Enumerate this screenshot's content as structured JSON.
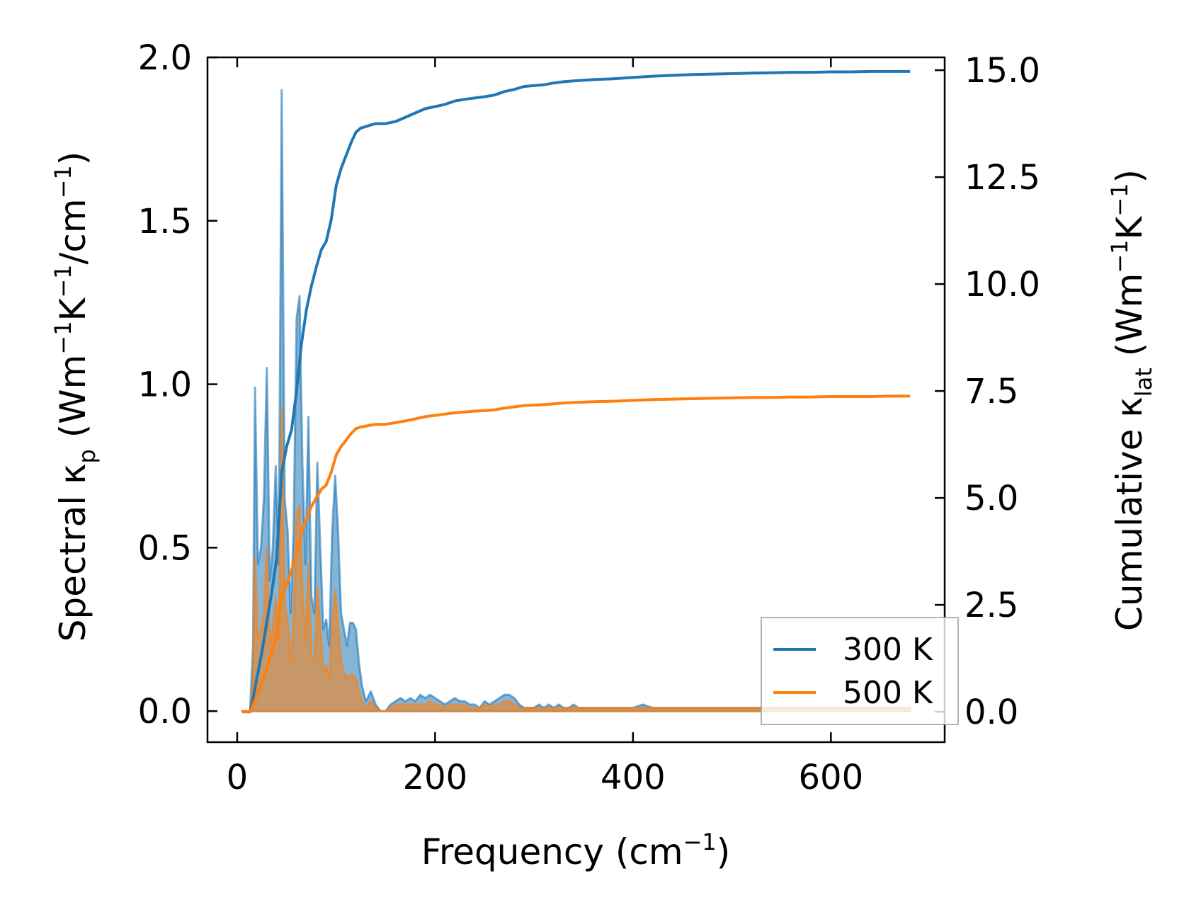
{
  "chart_data": {
    "type": "line",
    "title": "",
    "xlabel": "Frequency (cm",
    "xlabel_sup": "−1",
    "xlabel_end": ")",
    "ylabel_left": {
      "prefix": "Spectral κ",
      "sub": "p",
      "mid": " (Wm",
      "sup1": "−1",
      "k": "K",
      "sup2": "−1",
      "mid2": "/cm",
      "sup3": "−1",
      "end": ")"
    },
    "ylabel_right": {
      "prefix": "Cumulative κ",
      "sub": "lat",
      "mid": " (Wm",
      "sup1": "−1",
      "k": "K",
      "sup2": "−1",
      "end": ")"
    },
    "xlim": [
      -30,
      715
    ],
    "ylim_left": [
      -0.095,
      2.0
    ],
    "ylim_right": [
      -0.71,
      15.3
    ],
    "x_ticks": [
      0,
      200,
      400,
      600
    ],
    "x_tick_labels": [
      "0",
      "200",
      "400",
      "600"
    ],
    "y_left_ticks": [
      0.0,
      0.5,
      1.0,
      1.5,
      2.0
    ],
    "y_left_tick_labels": [
      "0.0",
      "0.5",
      "1.0",
      "1.5",
      "2.0"
    ],
    "y_right_ticks": [
      0.0,
      2.5,
      5.0,
      7.5,
      10.0,
      12.5,
      15.0
    ],
    "y_right_tick_labels": [
      "0.0",
      "2.5",
      "5.0",
      "7.5",
      "10.0",
      "12.5",
      "15.0"
    ],
    "grid": false,
    "legend_position": "lower-right",
    "colors": {
      "300K": "#1f77b4",
      "500K": "#ff7f0e"
    },
    "spectral_series": [
      {
        "name": "300 K",
        "axis": "left",
        "x": [
          5,
          10,
          13,
          16,
          18,
          21,
          24,
          27,
          30,
          33,
          36,
          39,
          42,
          45,
          48,
          51,
          54,
          57,
          60,
          63,
          66,
          69,
          72,
          75,
          78,
          81,
          84,
          87,
          90,
          93,
          96,
          99,
          102,
          105,
          108,
          111,
          114,
          117,
          120,
          123,
          126,
          130,
          135,
          140,
          145,
          150,
          155,
          160,
          165,
          170,
          175,
          180,
          185,
          190,
          195,
          200,
          205,
          210,
          215,
          220,
          225,
          230,
          235,
          240,
          245,
          250,
          255,
          260,
          265,
          270,
          275,
          280,
          285,
          290,
          295,
          300,
          305,
          310,
          315,
          320,
          325,
          330,
          335,
          340,
          345,
          350,
          360,
          370,
          380,
          390,
          400,
          410,
          420,
          430,
          440,
          450,
          460,
          470,
          480,
          490,
          500,
          520,
          540,
          560,
          580,
          600,
          620,
          640,
          660,
          680
        ],
        "values": [
          0.0,
          0.0,
          0.0,
          0.2,
          0.99,
          0.45,
          0.5,
          0.65,
          1.05,
          0.4,
          0.5,
          0.75,
          0.45,
          1.9,
          0.65,
          0.55,
          0.3,
          0.55,
          1.2,
          1.27,
          0.75,
          0.45,
          0.9,
          0.35,
          0.3,
          0.76,
          0.5,
          0.25,
          0.28,
          0.2,
          0.55,
          0.72,
          0.55,
          0.3,
          0.25,
          0.2,
          0.27,
          0.27,
          0.25,
          0.15,
          0.08,
          0.03,
          0.06,
          0.02,
          0.0,
          0.0,
          0.02,
          0.03,
          0.04,
          0.03,
          0.04,
          0.03,
          0.05,
          0.04,
          0.05,
          0.04,
          0.03,
          0.02,
          0.03,
          0.04,
          0.03,
          0.03,
          0.02,
          0.02,
          0.01,
          0.03,
          0.02,
          0.03,
          0.04,
          0.05,
          0.05,
          0.04,
          0.02,
          0.01,
          0.01,
          0.01,
          0.02,
          0.01,
          0.02,
          0.01,
          0.02,
          0.01,
          0.01,
          0.02,
          0.01,
          0.01,
          0.01,
          0.01,
          0.01,
          0.01,
          0.01,
          0.02,
          0.01,
          0.01,
          0.01,
          0.01,
          0.01,
          0.01,
          0.01,
          0.01,
          0.01,
          0.01,
          0.01,
          0.01,
          0.01,
          0.01,
          0.01,
          0.01,
          0.01,
          0.01
        ]
      },
      {
        "name": "500 K",
        "axis": "left",
        "x": [
          5,
          10,
          13,
          16,
          18,
          21,
          24,
          27,
          30,
          33,
          36,
          39,
          42,
          45,
          48,
          51,
          54,
          57,
          60,
          63,
          66,
          69,
          72,
          75,
          78,
          81,
          84,
          87,
          90,
          93,
          96,
          99,
          102,
          105,
          108,
          111,
          114,
          117,
          120,
          123,
          126,
          130,
          135,
          140,
          145,
          150,
          155,
          160,
          165,
          170,
          175,
          180,
          185,
          190,
          195,
          200,
          205,
          210,
          215,
          220,
          225,
          230,
          235,
          240,
          245,
          250,
          255,
          260,
          265,
          270,
          275,
          280,
          285,
          290,
          295,
          300,
          305,
          310,
          315,
          320,
          325,
          330,
          335,
          340,
          345,
          350,
          360,
          370,
          380,
          390,
          400,
          410,
          420,
          430,
          440,
          450,
          460,
          470,
          480,
          490,
          500,
          520,
          540,
          560,
          580,
          600,
          620,
          640,
          660,
          680
        ],
        "values": [
          0.0,
          0.0,
          0.0,
          0.1,
          0.47,
          0.22,
          0.25,
          0.3,
          0.5,
          0.2,
          0.25,
          0.35,
          0.22,
          0.93,
          0.32,
          0.28,
          0.15,
          0.28,
          0.6,
          0.63,
          0.37,
          0.22,
          0.45,
          0.17,
          0.15,
          0.38,
          0.25,
          0.12,
          0.14,
          0.1,
          0.27,
          0.37,
          0.27,
          0.15,
          0.12,
          0.1,
          0.11,
          0.11,
          0.1,
          0.06,
          0.03,
          0.01,
          0.03,
          0.01,
          0.0,
          0.0,
          0.01,
          0.02,
          0.02,
          0.02,
          0.02,
          0.02,
          0.02,
          0.02,
          0.03,
          0.02,
          0.02,
          0.01,
          0.02,
          0.02,
          0.02,
          0.02,
          0.01,
          0.01,
          0.01,
          0.02,
          0.01,
          0.02,
          0.02,
          0.03,
          0.03,
          0.02,
          0.01,
          0.01,
          0.01,
          0.01,
          0.01,
          0.01,
          0.01,
          0.01,
          0.01,
          0.01,
          0.01,
          0.01,
          0.01,
          0.01,
          0.01,
          0.01,
          0.01,
          0.01,
          0.01,
          0.01,
          0.01,
          0.01,
          0.01,
          0.01,
          0.01,
          0.01,
          0.01,
          0.01,
          0.01,
          0.01,
          0.01,
          0.01,
          0.01,
          0.01,
          0.01,
          0.01,
          0.01,
          0.01
        ]
      }
    ],
    "series": [
      {
        "name": "300 K",
        "axis": "right",
        "x": [
          5,
          10,
          13,
          16,
          20,
          25,
          30,
          35,
          40,
          45,
          50,
          55,
          60,
          65,
          70,
          75,
          80,
          85,
          90,
          95,
          100,
          105,
          110,
          115,
          120,
          125,
          130,
          135,
          140,
          150,
          160,
          170,
          180,
          190,
          200,
          210,
          220,
          230,
          240,
          250,
          260,
          270,
          280,
          290,
          300,
          310,
          320,
          330,
          340,
          360,
          380,
          400,
          420,
          440,
          460,
          480,
          500,
          520,
          540,
          560,
          580,
          600,
          620,
          640,
          660,
          680
        ],
        "values": [
          0.0,
          0.0,
          0.0,
          0.3,
          0.8,
          1.4,
          2.1,
          2.8,
          3.6,
          5.6,
          6.2,
          6.6,
          7.5,
          8.6,
          9.4,
          9.95,
          10.4,
          10.8,
          11.0,
          11.5,
          12.3,
          12.7,
          13.0,
          13.3,
          13.55,
          13.65,
          13.68,
          13.72,
          13.75,
          13.75,
          13.8,
          13.9,
          14.0,
          14.1,
          14.15,
          14.2,
          14.28,
          14.32,
          14.35,
          14.38,
          14.42,
          14.5,
          14.55,
          14.62,
          14.64,
          14.66,
          14.7,
          14.73,
          14.75,
          14.78,
          14.8,
          14.83,
          14.86,
          14.88,
          14.9,
          14.91,
          14.92,
          14.93,
          14.94,
          14.95,
          14.95,
          14.96,
          14.96,
          14.97,
          14.97,
          14.97
        ]
      },
      {
        "name": "500 K",
        "axis": "right",
        "x": [
          5,
          10,
          13,
          16,
          20,
          25,
          30,
          35,
          40,
          45,
          50,
          55,
          60,
          65,
          70,
          75,
          80,
          85,
          90,
          95,
          100,
          105,
          110,
          115,
          120,
          125,
          130,
          135,
          140,
          150,
          160,
          170,
          180,
          190,
          200,
          210,
          220,
          230,
          240,
          250,
          260,
          270,
          280,
          290,
          300,
          310,
          320,
          330,
          340,
          360,
          380,
          400,
          420,
          440,
          460,
          480,
          500,
          520,
          540,
          560,
          580,
          600,
          620,
          640,
          660,
          680
        ],
        "values": [
          0.0,
          0.0,
          0.0,
          0.15,
          0.4,
          0.7,
          1.0,
          1.4,
          1.8,
          2.7,
          3.0,
          3.3,
          3.7,
          4.2,
          4.5,
          4.8,
          5.0,
          5.2,
          5.3,
          5.6,
          6.0,
          6.2,
          6.35,
          6.5,
          6.62,
          6.66,
          6.68,
          6.7,
          6.72,
          6.72,
          6.76,
          6.8,
          6.85,
          6.9,
          6.93,
          6.96,
          6.99,
          7.01,
          7.03,
          7.04,
          7.06,
          7.1,
          7.13,
          7.16,
          7.17,
          7.18,
          7.2,
          7.22,
          7.23,
          7.25,
          7.26,
          7.28,
          7.3,
          7.31,
          7.32,
          7.33,
          7.34,
          7.35,
          7.35,
          7.36,
          7.36,
          7.37,
          7.37,
          7.37,
          7.38,
          7.38
        ]
      }
    ],
    "legend": [
      "300 K",
      "500 K"
    ]
  }
}
